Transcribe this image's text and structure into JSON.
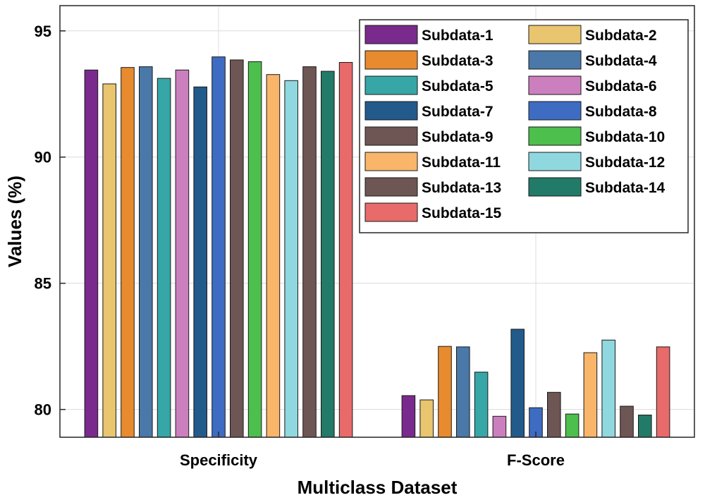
{
  "chart_data": {
    "type": "bar",
    "xlabel": "Multiclass Dataset",
    "ylabel": "Values (%)",
    "ylim": [
      78.9,
      96
    ],
    "yticks": [
      80,
      85,
      90,
      95
    ],
    "grid": true,
    "legend_position": "top-right",
    "categories": [
      "Specificity",
      "F-Score"
    ],
    "series": [
      {
        "name": "Subdata-1",
        "color": "#7a2a8c",
        "values": [
          93.45,
          80.55
        ]
      },
      {
        "name": "Subdata-2",
        "color": "#e8c56e",
        "values": [
          92.9,
          80.38
        ]
      },
      {
        "name": "Subdata-3",
        "color": "#e88a2e",
        "values": [
          93.55,
          82.5
        ]
      },
      {
        "name": "Subdata-4",
        "color": "#4a78a8",
        "values": [
          93.58,
          82.48
        ]
      },
      {
        "name": "Subdata-5",
        "color": "#36a6a6",
        "values": [
          93.12,
          81.48
        ]
      },
      {
        "name": "Subdata-6",
        "color": "#cc7fbf",
        "values": [
          93.45,
          79.73
        ]
      },
      {
        "name": "Subdata-7",
        "color": "#235a8c",
        "values": [
          92.78,
          83.18
        ]
      },
      {
        "name": "Subdata-8",
        "color": "#3d6cc2",
        "values": [
          93.97,
          80.07
        ]
      },
      {
        "name": "Subdata-9",
        "color": "#6e5654",
        "values": [
          93.85,
          80.68
        ]
      },
      {
        "name": "Subdata-10",
        "color": "#4cbf4c",
        "values": [
          93.78,
          79.82
        ]
      },
      {
        "name": "Subdata-11",
        "color": "#f9b56a",
        "values": [
          93.27,
          82.25
        ]
      },
      {
        "name": "Subdata-12",
        "color": "#8fd8df",
        "values": [
          93.03,
          82.75
        ]
      },
      {
        "name": "Subdata-13",
        "color": "#6e5654",
        "values": [
          93.58,
          80.13
        ]
      },
      {
        "name": "Subdata-14",
        "color": "#227a68",
        "values": [
          93.4,
          79.78
        ]
      },
      {
        "name": "Subdata-15",
        "color": "#e86a6a",
        "values": [
          93.75,
          82.48
        ]
      }
    ]
  }
}
